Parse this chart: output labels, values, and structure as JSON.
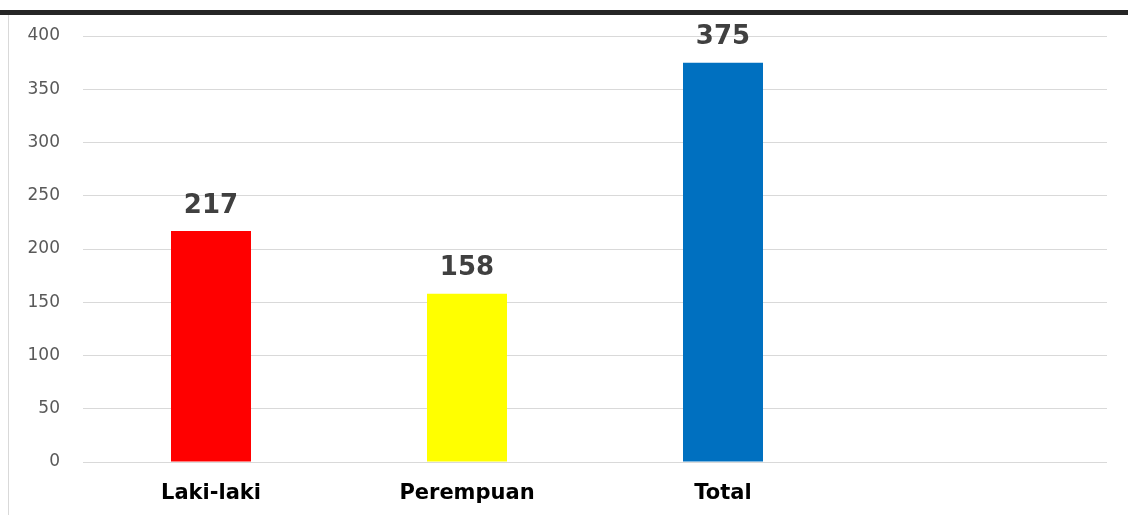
{
  "chart_data": {
    "type": "bar",
    "categories": [
      "Laki-laki",
      "Perempuan",
      "Total",
      null
    ],
    "values": [
      217,
      158,
      375,
      null
    ],
    "colors": [
      "#ff0000",
      "#ffff00",
      "#0070c0",
      null
    ],
    "ylim": [
      0,
      400
    ],
    "yticks": [
      0,
      50,
      100,
      150,
      200,
      250,
      300,
      350,
      400
    ],
    "grid": "y",
    "data_labels": true
  }
}
